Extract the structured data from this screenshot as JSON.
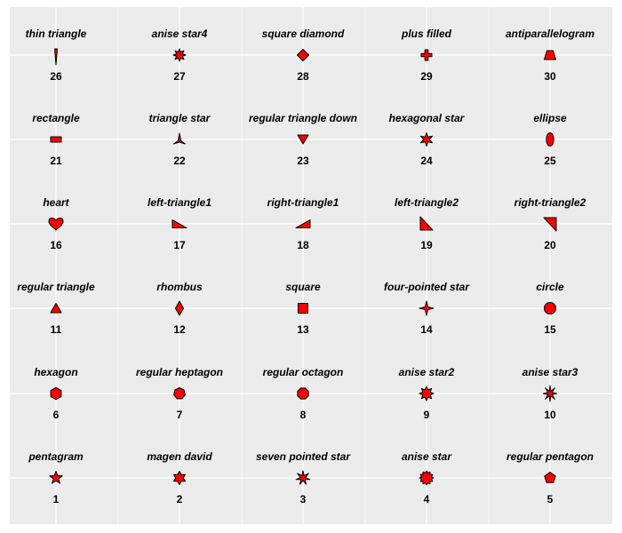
{
  "chart_data": {
    "type": "table",
    "title": "",
    "xlabel": "",
    "ylabel": "",
    "grid": true,
    "legend": "none",
    "colors": {
      "panel": "#ebebeb",
      "grid": "#ffffff",
      "fill": "#ff0000",
      "stroke": "#000000"
    },
    "columns": 5,
    "rows": 6,
    "cells": [
      {
        "id": 26,
        "label": "thin triangle",
        "number": "26",
        "shape": "thin-triangle"
      },
      {
        "id": 27,
        "label": "anise star4",
        "number": "27",
        "shape": "anise-star4"
      },
      {
        "id": 28,
        "label": "square diamond",
        "number": "28",
        "shape": "square-diamond"
      },
      {
        "id": 29,
        "label": "plus filled",
        "number": "29",
        "shape": "plus-filled"
      },
      {
        "id": 30,
        "label": "antiparallelogram",
        "number": "30",
        "shape": "antiparallelogram"
      },
      {
        "id": 21,
        "label": "rectangle",
        "number": "21",
        "shape": "rectangle"
      },
      {
        "id": 22,
        "label": "triangle star",
        "number": "22",
        "shape": "triangle-star"
      },
      {
        "id": 23,
        "label": "regular triangle down",
        "number": "23",
        "shape": "triangle-down"
      },
      {
        "id": 24,
        "label": "hexagonal star",
        "number": "24",
        "shape": "hexagonal-star"
      },
      {
        "id": 25,
        "label": "ellipse",
        "number": "25",
        "shape": "ellipse"
      },
      {
        "id": 16,
        "label": "heart",
        "number": "16",
        "shape": "heart"
      },
      {
        "id": 17,
        "label": "left-triangle1",
        "number": "17",
        "shape": "left-triangle1"
      },
      {
        "id": 18,
        "label": "right-triangle1",
        "number": "18",
        "shape": "right-triangle1"
      },
      {
        "id": 19,
        "label": "left-triangle2",
        "number": "19",
        "shape": "left-triangle2"
      },
      {
        "id": 20,
        "label": "right-triangle2",
        "number": "20",
        "shape": "right-triangle2"
      },
      {
        "id": 11,
        "label": "regular triangle",
        "number": "11",
        "shape": "triangle-up"
      },
      {
        "id": 12,
        "label": "rhombus",
        "number": "12",
        "shape": "rhombus"
      },
      {
        "id": 13,
        "label": "square",
        "number": "13",
        "shape": "square"
      },
      {
        "id": 14,
        "label": "four-pointed star",
        "number": "14",
        "shape": "four-pointed-star"
      },
      {
        "id": 15,
        "label": "circle",
        "number": "15",
        "shape": "circle"
      },
      {
        "id": 6,
        "label": "hexagon",
        "number": "6",
        "shape": "hexagon"
      },
      {
        "id": 7,
        "label": "regular heptagon",
        "number": "7",
        "shape": "heptagon"
      },
      {
        "id": 8,
        "label": "regular octagon",
        "number": "8",
        "shape": "octagon"
      },
      {
        "id": 9,
        "label": "anise star2",
        "number": "9",
        "shape": "anise-star2"
      },
      {
        "id": 10,
        "label": "anise star3",
        "number": "10",
        "shape": "anise-star3"
      },
      {
        "id": 1,
        "label": "pentagram",
        "number": "1",
        "shape": "pentagram"
      },
      {
        "id": 2,
        "label": "magen david",
        "number": "2",
        "shape": "magen-david"
      },
      {
        "id": 3,
        "label": "seven pointed star",
        "number": "3",
        "shape": "seven-pointed-star"
      },
      {
        "id": 4,
        "label": "anise star",
        "number": "4",
        "shape": "anise-star"
      },
      {
        "id": 5,
        "label": "regular pentagon",
        "number": "5",
        "shape": "pentagon"
      }
    ]
  }
}
